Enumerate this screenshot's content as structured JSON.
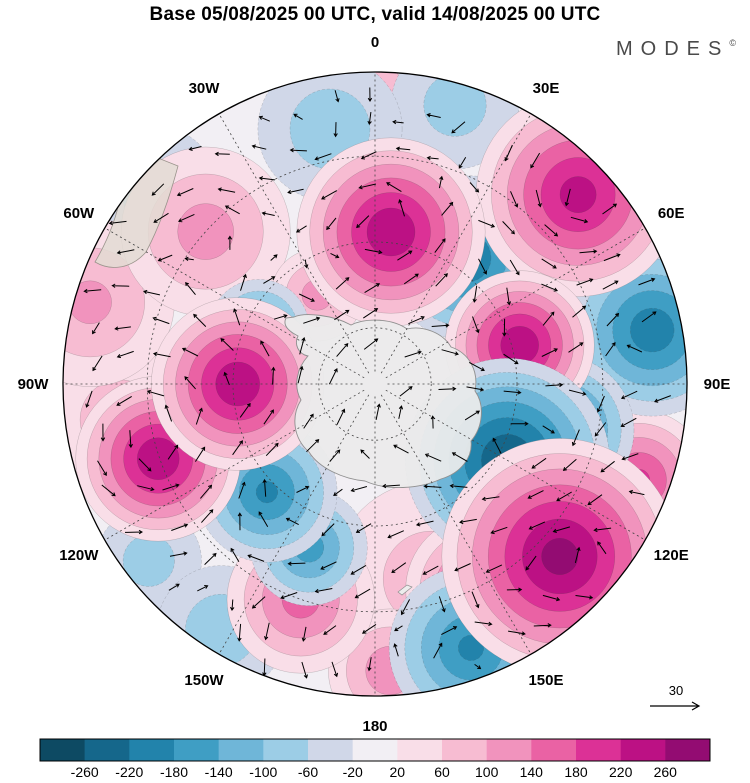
{
  "header": {
    "title": "Base 05/08/2025 00 UTC, valid 14/08/2025 00 UTC",
    "brand": "MODES",
    "brand_mark": "©"
  },
  "map": {
    "projection": "south-polar-stereographic",
    "longitude_labels": [
      {
        "lon": 0,
        "label": "0"
      },
      {
        "lon": 30,
        "label": "30E"
      },
      {
        "lon": 60,
        "label": "60E"
      },
      {
        "lon": 90,
        "label": "90E"
      },
      {
        "lon": 120,
        "label": "120E"
      },
      {
        "lon": 150,
        "label": "150E"
      },
      {
        "lon": 180,
        "label": "180"
      },
      {
        "lon": 210,
        "label": "150W"
      },
      {
        "lon": 240,
        "label": "120W"
      },
      {
        "lon": 270,
        "label": "90W"
      },
      {
        "lon": 300,
        "label": "60W"
      },
      {
        "lon": 330,
        "label": "30W"
      }
    ],
    "reference_vector": {
      "label": "30"
    }
  },
  "chart_data": {
    "type": "heatmap",
    "title": "Base 05/08/2025 00 UTC, valid 14/08/2025 00 UTC",
    "description": "Southern-hemisphere anomaly field (filled contours) with wind vectors, Antarctica at centre",
    "colorbar": {
      "ticks": [
        -260,
        -220,
        -180,
        -140,
        -100,
        -60,
        -20,
        20,
        60,
        100,
        140,
        180,
        220,
        260
      ],
      "interval": 40,
      "extend": "both",
      "colors": [
        "#0d4a63",
        "#15678b",
        "#2283ab",
        "#3f9ec4",
        "#6fb6d8",
        "#9ccde6",
        "#d0d7e8",
        "#f2eff4",
        "#f9dee8",
        "#f7bcd2",
        "#f193bd",
        "#ea62a4",
        "#dc3196",
        "#bc1184",
        "#930c72"
      ]
    },
    "anomaly_centers_format": "lon = degrees east clockwise from top; r = fraction of map radius from pole; peak = anomaly value; size = blob radius as fraction of map radius (values estimated from figure)",
    "anomaly_centers": [
      {
        "lon": 6,
        "r": 0.49,
        "peak": 250,
        "size": 0.24
      },
      {
        "lon": 47,
        "r": 0.89,
        "peak": 230,
        "size": 0.26
      },
      {
        "lon": 75,
        "r": 0.48,
        "peak": 250,
        "size": 0.19
      },
      {
        "lon": 110,
        "r": 0.9,
        "peak": 180,
        "size": 0.18
      },
      {
        "lon": 133,
        "r": 0.81,
        "peak": 270,
        "size": 0.3
      },
      {
        "lon": 153,
        "r": 0.74,
        "peak": 180,
        "size": 0.19
      },
      {
        "lon": 164,
        "r": 0.65,
        "peak": 70,
        "size": 0.26
      },
      {
        "lon": 177,
        "r": 0.92,
        "peak": 120,
        "size": 0.16
      },
      {
        "lon": 199,
        "r": 0.73,
        "peak": 150,
        "size": 0.19
      },
      {
        "lon": 251,
        "r": 0.735,
        "peak": 250,
        "size": 0.21
      },
      {
        "lon": 262,
        "r": 0.825,
        "peak": 80,
        "size": 0.19
      },
      {
        "lon": 270,
        "r": 0.44,
        "peak": 250,
        "size": 0.22
      },
      {
        "lon": 286,
        "r": 0.95,
        "peak": 100,
        "size": 0.22
      },
      {
        "lon": 312,
        "r": 0.73,
        "peak": 110,
        "size": 0.22
      },
      {
        "lon": 327,
        "r": 0.34,
        "peak": 110,
        "size": 0.12
      },
      {
        "lon": 1,
        "r": 0.96,
        "peak": 60,
        "size": 0.14
      },
      {
        "lon": 16,
        "r": 0.93,
        "peak": -70,
        "size": 0.17
      },
      {
        "lon": 36,
        "r": 0.5,
        "peak": -210,
        "size": 0.21
      },
      {
        "lon": 79,
        "r": 0.905,
        "peak": -200,
        "size": 0.22
      },
      {
        "lon": 104,
        "r": 0.61,
        "peak": -200,
        "size": 0.19
      },
      {
        "lon": 120,
        "r": 0.49,
        "peak": -250,
        "size": 0.26
      },
      {
        "lon": 144,
        "r": 0.93,
        "peak": -120,
        "size": 0.14
      },
      {
        "lon": 160,
        "r": 0.9,
        "peak": -180,
        "size": 0.21
      },
      {
        "lon": 202,
        "r": 0.565,
        "peak": -150,
        "size": 0.15
      },
      {
        "lon": 212,
        "r": 0.93,
        "peak": -80,
        "size": 0.17
      },
      {
        "lon": 225,
        "r": 0.49,
        "peak": -180,
        "size": 0.18
      },
      {
        "lon": 232,
        "r": 0.92,
        "peak": -70,
        "size": 0.14
      },
      {
        "lon": 295,
        "r": 0.41,
        "peak": -150,
        "size": 0.13
      },
      {
        "lon": 310,
        "r": 0.94,
        "peak": -60,
        "size": 0.19
      },
      {
        "lon": 350,
        "r": 0.83,
        "peak": -80,
        "size": 0.19
      }
    ],
    "wind": {
      "reference_value": 30
    }
  }
}
